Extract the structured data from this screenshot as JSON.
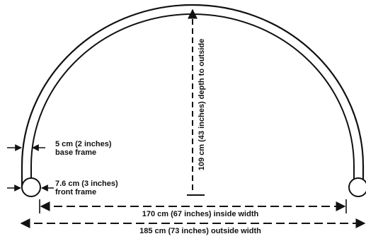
{
  "labels": {
    "base_frame_size": "5 cm (2 inches)",
    "base_frame_name": "base frame",
    "front_frame_size": "7.6 cm (3 inches)",
    "front_frame_name": "front frame",
    "depth": "109 cm (43 inches) depth to outside",
    "inside_width": "170 cm (67 inches) inside width",
    "outside_width": "185 cm (73 inches) outside width"
  },
  "colors": {
    "line": "#111111",
    "background": "#ffffff"
  }
}
